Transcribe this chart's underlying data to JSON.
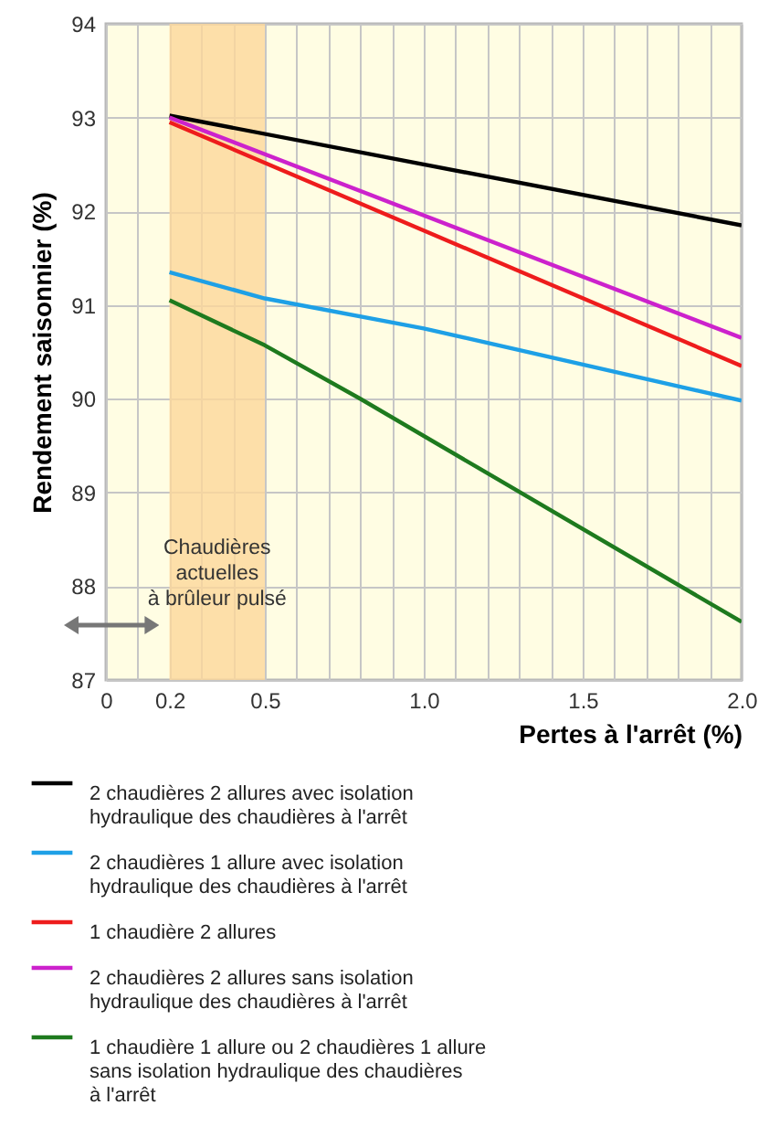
{
  "chart_data": {
    "type": "line",
    "xlabel": "Pertes à l'arrêt (%)",
    "ylabel": "Rendement saisonnier (%)",
    "xlim": [
      0,
      2
    ],
    "ylim": [
      87,
      94
    ],
    "xticks": [
      0,
      {
        "value": 0.1,
        "label": null
      },
      0.2,
      {
        "value": 0.3,
        "label": null
      },
      {
        "value": 0.4,
        "label": null
      },
      0.5,
      {
        "value": 0.6,
        "label": null
      },
      {
        "value": 0.7,
        "label": null
      },
      {
        "value": 0.8,
        "label": null
      },
      {
        "value": 0.9,
        "label": null
      },
      {
        "value": 1,
        "label": "1.0"
      },
      {
        "value": 1.1,
        "label": null
      },
      {
        "value": 1.2,
        "label": null
      },
      {
        "value": 1.3,
        "label": null
      },
      {
        "value": 1.4,
        "label": null
      },
      1.5,
      {
        "value": 1.6,
        "label": null
      },
      {
        "value": 1.7,
        "label": null
      },
      {
        "value": 1.8,
        "label": null
      },
      {
        "value": 1.9,
        "label": null
      },
      {
        "value": 2,
        "label": "2.0"
      }
    ],
    "yticks": [
      87,
      88,
      89,
      90,
      91,
      92,
      93,
      94
    ],
    "grid": true,
    "legend": "bottom",
    "marker": "none",
    "bands": [
      {
        "axis": "x",
        "from": 0.2,
        "to": 0.5,
        "label": "Chaudières actuelles à brûleur pulsé",
        "color": "#fdd79a"
      }
    ],
    "series": [
      {
        "name": "2 chaudières 2 allures avec isolation hydraulique des chaudières à l'arrêt",
        "color": "#000000",
        "x": [
          0.2,
          2
        ],
        "values": [
          93.02,
          91.85
        ]
      },
      {
        "name": "2 chaudières 1 allure avec isolation hydraulique des chaudières à l'arrêt",
        "color": "#1ea0e6",
        "x": [
          0.2,
          0.5,
          1,
          2
        ],
        "values": [
          91.35,
          91.07,
          90.75,
          89.98
        ]
      },
      {
        "name": "1 chaudière 2 allures",
        "color": "#ee1c1c",
        "x": [
          0.2,
          2
        ],
        "values": [
          92.95,
          90.35
        ]
      },
      {
        "name": "2 chaudières 2 allures sans isolation hydraulique des chaudières à l'arrêt",
        "color": "#cc22cc",
        "x": [
          0.2,
          2
        ],
        "values": [
          93.0,
          90.65
        ]
      },
      {
        "name": "1 chaudière 1 allure ou 2 chaudières 1 allure sans isolation hydraulique des chaudières à l'arrêt",
        "color": "#1e7a1e",
        "x": [
          0.2,
          0.5,
          0.8,
          2
        ],
        "values": [
          91.05,
          90.57,
          90.0,
          87.62
        ]
      }
    ]
  }
}
